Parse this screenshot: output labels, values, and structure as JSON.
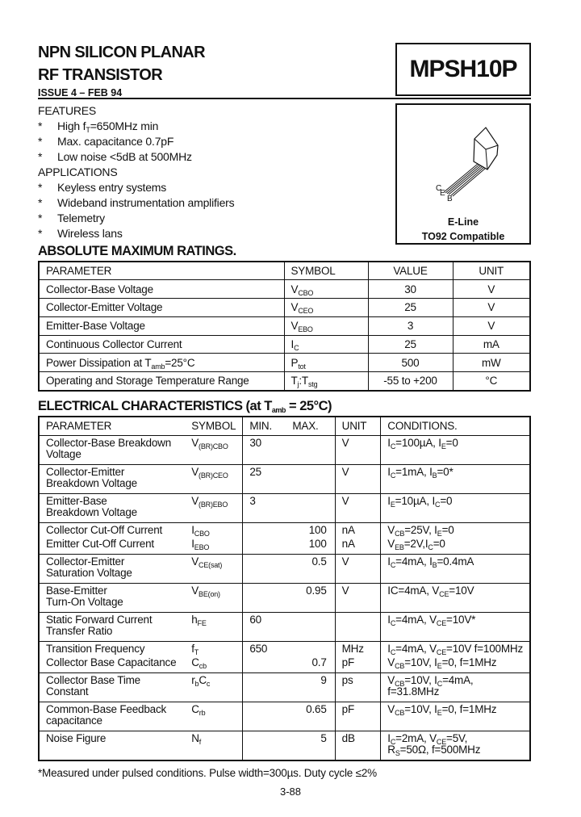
{
  "header": {
    "title_line1": "NPN SILICON PLANAR",
    "title_line2": "RF TRANSISTOR",
    "part_number": "MPSH10P",
    "issue": "ISSUE 4 – FEB 94"
  },
  "features": {
    "heading": "FEATURES",
    "items": [
      "High f_{T}=650MHz min",
      "Max. capacitance 0.7pF",
      "Low noise <5dB at 500MHz"
    ]
  },
  "applications": {
    "heading": "APPLICATIONS",
    "items": [
      "Keyless entry systems",
      "Wideband instrumentation amplifiers",
      "Telemetry",
      "Wireless lans"
    ]
  },
  "package": {
    "pin_labels": [
      "C",
      "E",
      "B"
    ],
    "caption_line1": "E-Line",
    "caption_line2": "TO92 Compatible"
  },
  "absolute_max": {
    "heading": "ABSOLUTE MAXIMUM RATINGS.",
    "columns": [
      "PARAMETER",
      "SYMBOL",
      "VALUE",
      "UNIT"
    ],
    "rows": [
      [
        "Collector-Base Voltage",
        "V_{CBO}",
        "30",
        "V"
      ],
      [
        "Collector-Emitter Voltage",
        "V_{CEO}",
        "25",
        "V"
      ],
      [
        "Emitter-Base Voltage",
        "V_{EBO}",
        "3",
        "V"
      ],
      [
        "Continuous Collector Current",
        "I_{C}",
        "25",
        "mA"
      ],
      [
        "Power Dissipation at T_{amb}=25°C",
        "P_{tot}",
        "500",
        "mW"
      ],
      [
        "Operating and Storage Temperature Range",
        "T_{j}:T_{stg}",
        "-55 to +200",
        "°C"
      ]
    ]
  },
  "electrical": {
    "heading": "ELECTRICAL CHARACTERISTICS (at T_{amb} = 25°C)",
    "columns": [
      "PARAMETER",
      "SYMBOL",
      "MIN.",
      "MAX.",
      "UNIT",
      "CONDITIONS."
    ],
    "groups": [
      [
        [
          "Collector-Base  Breakdown\nVoltage",
          "V_{(BR)CBO}",
          "30",
          "",
          "V",
          "I_{C}=100µA, I_{E}=0"
        ]
      ],
      [
        [
          "Collector-Emitter\nBreakdown Voltage",
          "V_{(BR)CEO}",
          "25",
          "",
          "V",
          "I_{C}=1mA, I_{B}=0*"
        ]
      ],
      [
        [
          "Emitter-Base\nBreakdown Voltage",
          "V_{(BR)EBO}",
          "3",
          "",
          "V",
          "I_{E}=10µA, I_{C}=0"
        ]
      ],
      [
        [
          "Collector Cut-Off Current",
          "I_{CBO}",
          "",
          "100",
          "nA",
          "V_{CB}=25V, I_{E}=0"
        ],
        [
          "Emitter Cut-Off Current",
          "I_{EBO}",
          "",
          "100",
          "nA",
          "V_{EB}=2V,I_{C}=0"
        ]
      ],
      [
        [
          "Collector-Emitter\nSaturation Voltage",
          "V_{CE(sat)}",
          "",
          "0.5",
          "V",
          "I_{C}=4mA, I_{B}=0.4mA"
        ]
      ],
      [
        [
          "Base-Emitter\nTurn-On Voltage",
          "V_{BE(on)}",
          "",
          "0.95",
          "V",
          "IC=4mA, V_{CE}=10V"
        ]
      ],
      [
        [
          "Static Forward Current\nTransfer Ratio",
          "h_{FE}",
          "60",
          "",
          "",
          "I_{C}=4mA, V_{CE}=10V*"
        ]
      ],
      [
        [
          "Transition Frequency",
          "f_{T}",
          "650",
          "",
          "MHz",
          "I_{C}=4mA, V_{CE}=10V f=100MHz"
        ],
        [
          "Collector Base Capacitance",
          "C_{cb}",
          "",
          "0.7",
          "pF",
          "V_{CB}=10V, I_{E}=0, f=1MHz"
        ]
      ],
      [
        [
          "Collector Base Time\nConstant",
          "r_{b}C_{c}",
          "",
          "9",
          "ps",
          "V_{CB}=10V, I_{C}=4mA,\nf=31.8MHz"
        ]
      ],
      [
        [
          "Common-Base Feedback\ncapacitance",
          "C_{rb}",
          "",
          "0.65",
          "pF",
          "V_{CB}=10V, I_{E}=0, f=1MHz"
        ]
      ],
      [
        [
          "Noise Figure",
          "N_{f}",
          "",
          "5",
          "dB",
          "I_{C}=2mA, V_{CE}=5V,\nR_{S}=50Ω, f=500MHz"
        ]
      ]
    ],
    "footnote": "*Measured under pulsed conditions. Pulse width=300µs. Duty cycle ≤2%"
  },
  "page_number": "3-88"
}
